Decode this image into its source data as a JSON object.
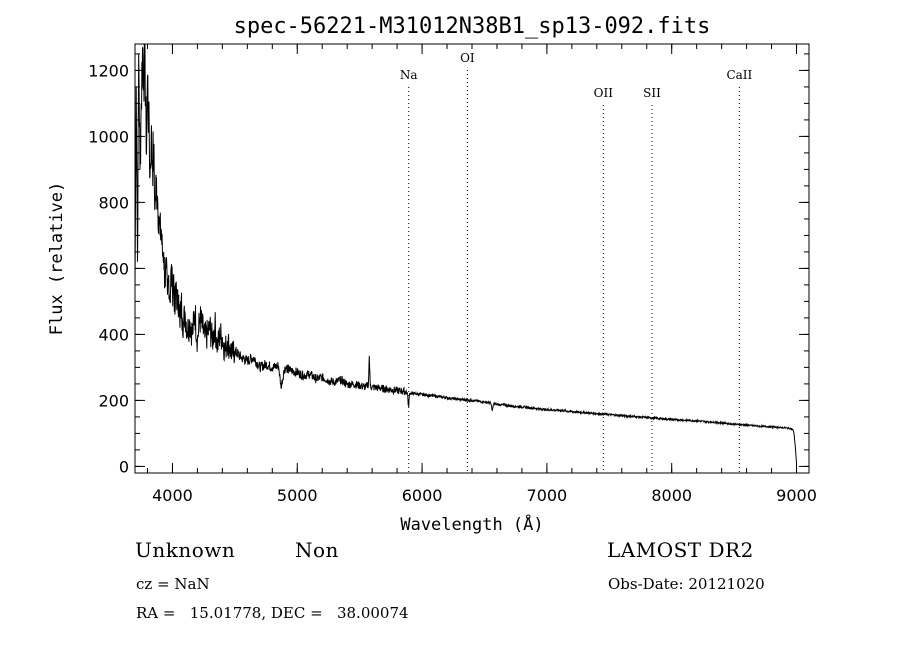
{
  "chart_data": {
    "type": "line",
    "title": "spec-56221-M31012N38B1_sp13-092.fits",
    "xlabel": "Wavelength (Å)",
    "ylabel": "Flux (relative)",
    "xlim": [
      3700,
      9100
    ],
    "ylim": [
      -20,
      1280
    ],
    "x_ticks": [
      4000,
      5000,
      6000,
      7000,
      8000,
      9000
    ],
    "y_ticks": [
      0,
      200,
      400,
      600,
      800,
      1000,
      1200
    ],
    "grid": false,
    "line_color": "#000000",
    "series": [
      {
        "x": [
          3700,
          3710,
          3720,
          3730,
          3740,
          3750,
          3760,
          3770,
          3780,
          3790,
          3800,
          3810,
          3820,
          3830,
          3840,
          3850,
          3860,
          3870,
          3880,
          3890,
          3900,
          3910,
          3920,
          3930,
          3940,
          3950,
          3960,
          3970,
          3980,
          3990,
          4000,
          4010,
          4020,
          4030,
          4040,
          4050,
          4060,
          4070,
          4080,
          4090,
          4100,
          4120,
          4140,
          4160,
          4180,
          4200,
          4220,
          4240,
          4260,
          4280,
          4300,
          4320,
          4340,
          4360,
          4380,
          4400,
          4420,
          4440,
          4460,
          4480,
          4500,
          4550,
          4600,
          4650,
          4700,
          4750,
          4800,
          4850,
          4870,
          4900,
          4950,
          5000,
          5050,
          5100,
          5150,
          5200,
          5250,
          5300,
          5350,
          5400,
          5450,
          5500,
          5550,
          5570,
          5577,
          5585,
          5600,
          5650,
          5700,
          5750,
          5800,
          5850,
          5880,
          5893,
          5900,
          5950,
          6000,
          6100,
          6200,
          6300,
          6400,
          6500,
          6550,
          6563,
          6575,
          6600,
          6700,
          6800,
          6900,
          7000,
          7100,
          7200,
          7300,
          7400,
          7500,
          7600,
          7700,
          7800,
          7900,
          8000,
          8100,
          8200,
          8300,
          8400,
          8500,
          8600,
          8700,
          8800,
          8900,
          8950,
          8970,
          8980,
          8990,
          9000
        ],
        "y": [
          540,
          1150,
          620,
          1250,
          900,
          1100,
          1270,
          1200,
          1260,
          950,
          1180,
          1050,
          880,
          1000,
          920,
          950,
          780,
          860,
          820,
          760,
          700,
          720,
          640,
          650,
          560,
          600,
          520,
          580,
          500,
          600,
          540,
          580,
          460,
          560,
          480,
          520,
          420,
          500,
          450,
          430,
          470,
          410,
          440,
          400,
          470,
          380,
          450,
          420,
          390,
          400,
          420,
          380,
          430,
          360,
          400,
          390,
          350,
          380,
          360,
          340,
          350,
          330,
          320,
          330,
          300,
          310,
          300,
          305,
          240,
          300,
          290,
          285,
          275,
          280,
          265,
          270,
          260,
          255,
          262,
          248,
          250,
          245,
          240,
          250,
          335,
          245,
          240,
          238,
          235,
          232,
          230,
          228,
          225,
          180,
          222,
          220,
          218,
          213,
          208,
          203,
          200,
          195,
          192,
          170,
          190,
          188,
          184,
          180,
          176,
          172,
          170,
          166,
          163,
          160,
          157,
          154,
          151,
          148,
          145,
          142,
          140,
          138,
          135,
          132,
          128,
          125,
          122,
          120,
          117,
          115,
          112,
          100,
          60,
          10
        ]
      }
    ],
    "annotations": [
      {
        "label": "Na",
        "x": 5893,
        "level": 1
      },
      {
        "label": "OI",
        "x": 6363,
        "level": 0
      },
      {
        "label": "OII",
        "x": 7452,
        "level": 2
      },
      {
        "label": "SII",
        "x": 7842,
        "level": 2
      },
      {
        "label": "CaII",
        "x": 8542,
        "level": 1
      }
    ]
  },
  "info": {
    "class_label": "Unknown",
    "subclass_label": "Non",
    "survey": "LAMOST DR2",
    "cz": "cz = NaN",
    "obs_date": "Obs-Date: 20121020",
    "coords": "RA =   15.01778, DEC =   38.00074"
  }
}
